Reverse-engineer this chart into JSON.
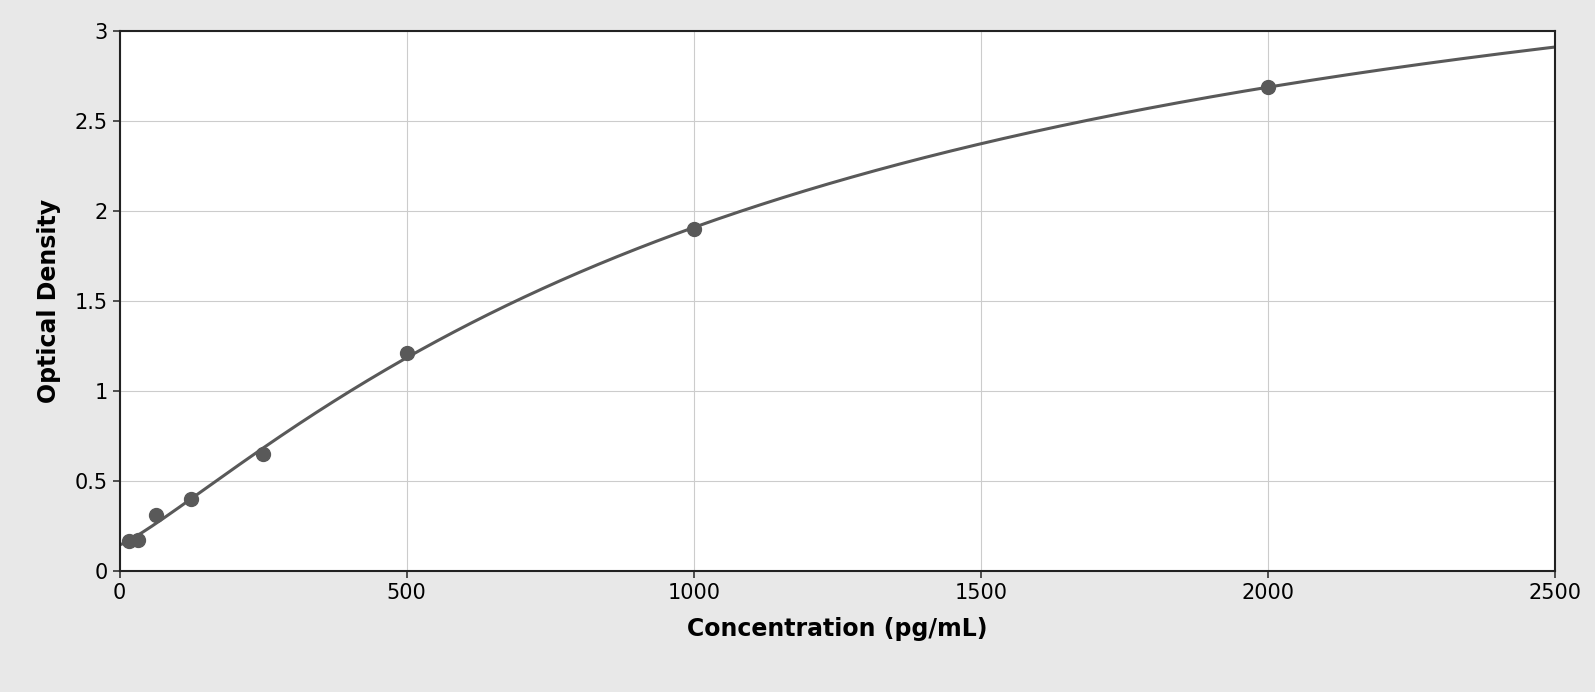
{
  "x_data": [
    15.625,
    31.25,
    62.5,
    125,
    250,
    500,
    1000,
    2000
  ],
  "y_data": [
    0.165,
    0.17,
    0.31,
    0.4,
    0.65,
    1.21,
    1.9,
    2.69
  ],
  "marker_color": "#595959",
  "line_color": "#595959",
  "marker_size": 10,
  "line_width": 2.2,
  "xlabel": "Concentration (pg/mL)",
  "ylabel": "Optical Density",
  "xlabel_fontsize": 17,
  "ylabel_fontsize": 17,
  "tick_fontsize": 15,
  "xlim": [
    0,
    2500
  ],
  "ylim": [
    0,
    3
  ],
  "xticks": [
    0,
    500,
    1000,
    1500,
    2000,
    2500
  ],
  "yticks": [
    0,
    0.5,
    1.0,
    1.5,
    2.0,
    2.5,
    3.0
  ],
  "grid_color": "#cccccc",
  "background_color": "#ffffff",
  "outer_bg": "#e8e8e8",
  "xlabel_fontweight": "bold",
  "ylabel_fontweight": "bold",
  "four_pl_A": 0.14,
  "four_pl_B": 0.62,
  "four_pl_C": 420.0,
  "four_pl_D": 3.85
}
